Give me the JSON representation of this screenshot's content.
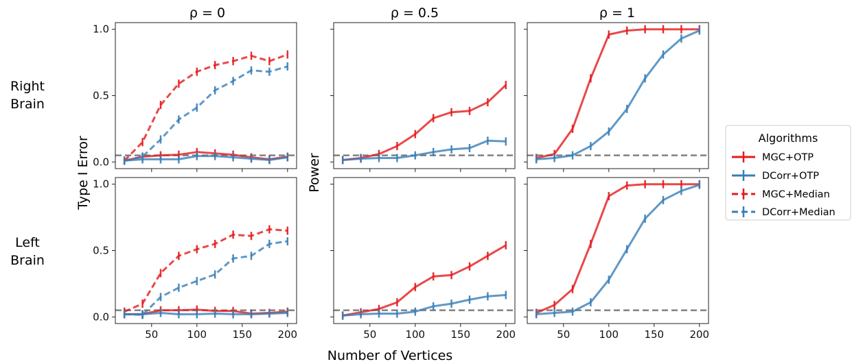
{
  "figure": {
    "row_labels": [
      [
        "Right",
        "Brain"
      ],
      [
        "Left",
        "Brain"
      ]
    ],
    "left_ylabel": "Type I Error",
    "mid_ylabel": "Power",
    "xlabel": "Number of Vertices",
    "legend": {
      "title": "Algorithms",
      "position": "right",
      "items": [
        {
          "name": "MGC+OTP",
          "color": "#e41a1c",
          "dash": "solid"
        },
        {
          "name": "DCorr+OTP",
          "color": "#377eb8",
          "dash": "solid"
        },
        {
          "name": "MGC+Median",
          "color": "#e41a1c",
          "dash": "dashed"
        },
        {
          "name": "DCorr+Median",
          "color": "#377eb8",
          "dash": "dashed"
        }
      ]
    },
    "reference_line": {
      "y": 0.05,
      "color": "#808080",
      "style": "dashed"
    }
  },
  "chart_data": [
    {
      "type": "line",
      "title": "ρ = 0",
      "row": "Right Brain",
      "xlim": [
        10,
        210
      ],
      "ylim": [
        -0.05,
        1.05
      ],
      "xticks": [
        "50",
        "100",
        "150",
        "200"
      ],
      "yticks": [
        "0.0",
        "0.5",
        "1.0"
      ],
      "x": [
        20,
        40,
        60,
        80,
        100,
        120,
        140,
        160,
        180,
        200
      ],
      "series": [
        {
          "name": "MGC+OTP",
          "values": [
            0.01,
            0.04,
            0.05,
            0.055,
            0.075,
            0.065,
            0.055,
            0.035,
            0.02,
            0.04
          ]
        },
        {
          "name": "DCorr+OTP",
          "values": [
            0.01,
            0.02,
            0.02,
            0.02,
            0.045,
            0.045,
            0.035,
            0.025,
            0.015,
            0.035
          ]
        },
        {
          "name": "MGC+Median",
          "values": [
            0.01,
            0.15,
            0.43,
            0.59,
            0.68,
            0.73,
            0.76,
            0.8,
            0.76,
            0.81
          ]
        },
        {
          "name": "DCorr+Median",
          "values": [
            0.01,
            0.04,
            0.17,
            0.32,
            0.41,
            0.54,
            0.61,
            0.69,
            0.68,
            0.72
          ]
        }
      ]
    },
    {
      "type": "line",
      "title": "ρ = 0.5",
      "row": "Right Brain",
      "xlim": [
        10,
        210
      ],
      "ylim": [
        -0.05,
        1.05
      ],
      "xticks": [
        "50",
        "100",
        "150",
        "200"
      ],
      "yticks": [
        "0.0",
        "0.5",
        "1.0"
      ],
      "x": [
        20,
        40,
        60,
        80,
        100,
        120,
        140,
        160,
        180,
        200
      ],
      "series": [
        {
          "name": "MGC+OTP",
          "values": [
            0.015,
            0.03,
            0.06,
            0.12,
            0.21,
            0.33,
            0.375,
            0.385,
            0.45,
            0.58
          ]
        },
        {
          "name": "DCorr+OTP",
          "values": [
            0.015,
            0.025,
            0.03,
            0.03,
            0.05,
            0.075,
            0.095,
            0.105,
            0.16,
            0.155
          ]
        }
      ]
    },
    {
      "type": "line",
      "title": "ρ = 1",
      "row": "Right Brain",
      "xlim": [
        10,
        210
      ],
      "ylim": [
        -0.05,
        1.05
      ],
      "xticks": [
        "50",
        "100",
        "150",
        "200"
      ],
      "yticks": [
        "0.0",
        "0.5",
        "1.0"
      ],
      "x": [
        20,
        40,
        60,
        80,
        100,
        120,
        140,
        160,
        180,
        200
      ],
      "series": [
        {
          "name": "MGC+OTP",
          "values": [
            0.03,
            0.06,
            0.25,
            0.63,
            0.96,
            0.99,
            1.0,
            1.0,
            1.0,
            1.0
          ]
        },
        {
          "name": "DCorr+OTP",
          "values": [
            0.02,
            0.03,
            0.05,
            0.12,
            0.23,
            0.4,
            0.63,
            0.81,
            0.93,
            0.99
          ]
        }
      ]
    },
    {
      "type": "line",
      "title": "",
      "row": "Left Brain",
      "xlim": [
        10,
        210
      ],
      "ylim": [
        -0.05,
        1.05
      ],
      "xticks": [
        "50",
        "100",
        "150",
        "200"
      ],
      "yticks": [
        "0.0",
        "0.5",
        "1.0"
      ],
      "x": [
        20,
        40,
        60,
        80,
        100,
        120,
        140,
        160,
        180,
        200
      ],
      "series": [
        {
          "name": "MGC+OTP",
          "values": [
            0.02,
            0.02,
            0.05,
            0.05,
            0.055,
            0.045,
            0.045,
            0.025,
            0.03,
            0.04
          ]
        },
        {
          "name": "DCorr+OTP",
          "values": [
            0.02,
            0.02,
            0.03,
            0.02,
            0.02,
            0.025,
            0.02,
            0.02,
            0.025,
            0.03
          ]
        },
        {
          "name": "MGC+Median",
          "values": [
            0.04,
            0.1,
            0.33,
            0.46,
            0.51,
            0.55,
            0.62,
            0.61,
            0.66,
            0.65
          ]
        },
        {
          "name": "DCorr+Median",
          "values": [
            0.02,
            0.015,
            0.15,
            0.22,
            0.27,
            0.32,
            0.44,
            0.46,
            0.55,
            0.57
          ]
        }
      ]
    },
    {
      "type": "line",
      "title": "",
      "row": "Left Brain",
      "xlim": [
        10,
        210
      ],
      "ylim": [
        -0.05,
        1.05
      ],
      "xticks": [
        "50",
        "100",
        "150",
        "200"
      ],
      "yticks": [
        "0.0",
        "0.5",
        "1.0"
      ],
      "x": [
        20,
        40,
        60,
        80,
        100,
        120,
        140,
        160,
        180,
        200
      ],
      "series": [
        {
          "name": "MGC+OTP",
          "values": [
            0.01,
            0.035,
            0.06,
            0.11,
            0.225,
            0.305,
            0.315,
            0.38,
            0.46,
            0.54
          ]
        },
        {
          "name": "DCorr+OTP",
          "values": [
            0.01,
            0.02,
            0.025,
            0.025,
            0.04,
            0.08,
            0.1,
            0.13,
            0.155,
            0.165
          ]
        }
      ]
    },
    {
      "type": "line",
      "title": "",
      "row": "Left Brain",
      "xlim": [
        10,
        210
      ],
      "ylim": [
        -0.05,
        1.05
      ],
      "xticks": [
        "50",
        "100",
        "150",
        "200"
      ],
      "yticks": [
        "0.0",
        "0.5",
        "1.0"
      ],
      "x": [
        20,
        40,
        60,
        80,
        100,
        120,
        140,
        160,
        180,
        200
      ],
      "series": [
        {
          "name": "MGC+OTP",
          "values": [
            0.03,
            0.09,
            0.21,
            0.55,
            0.91,
            0.99,
            1.0,
            1.0,
            1.0,
            1.0
          ]
        },
        {
          "name": "DCorr+OTP",
          "values": [
            0.02,
            0.03,
            0.04,
            0.11,
            0.28,
            0.51,
            0.74,
            0.88,
            0.95,
            0.995
          ]
        }
      ]
    }
  ]
}
